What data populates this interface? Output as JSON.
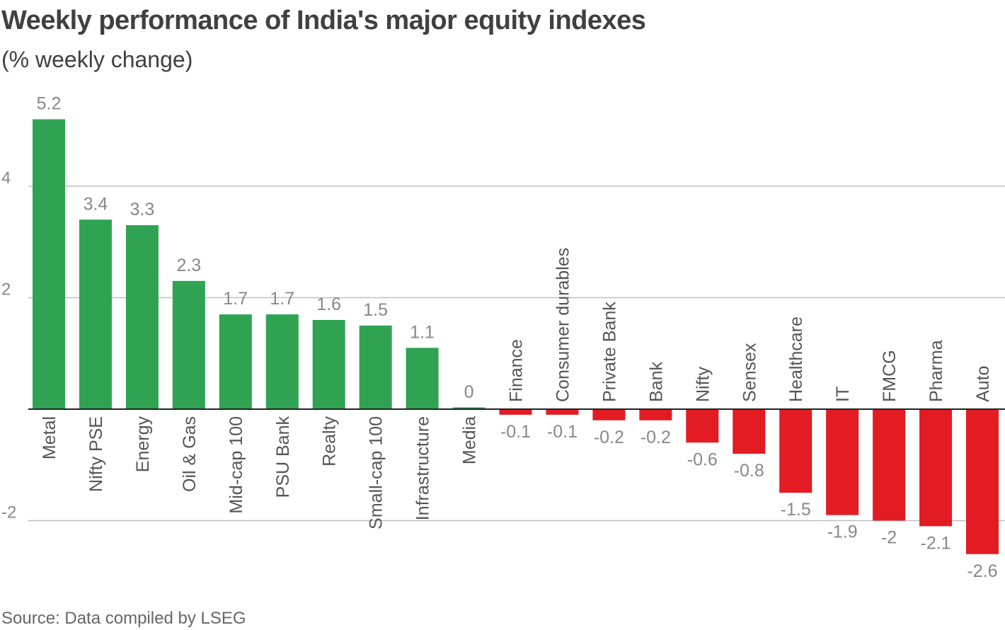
{
  "title": "Weekly performance of India's major equity indexes",
  "subtitle": "(% weekly change)",
  "source": "Source: Data compiled by LSEG",
  "colors": {
    "positive": "#2fa352",
    "negative": "#e31b23",
    "grid": "#bfbfbf",
    "axis": "#222222",
    "text": "#555555",
    "value_label": "#888888"
  },
  "chart_data": {
    "type": "bar",
    "title": "Weekly performance of India's major equity indexes",
    "subtitle": "(% weekly change)",
    "xlabel": "",
    "ylabel": "",
    "ylim": [
      -2.6,
      5.2
    ],
    "yticks": [
      4,
      2,
      -2
    ],
    "ytick_labels": [
      "4",
      "2",
      "-2"
    ],
    "grid": true,
    "categories": [
      "Metal",
      "Nifty PSE",
      "Energy",
      "Oil & Gas",
      "Mid-cap 100",
      "PSU Bank",
      "Realty",
      "Small-cap 100",
      "Infrastructure",
      "Media",
      "Finance",
      "Consumer durables",
      "Private Bank",
      "Bank",
      "Nifty",
      "Sensex",
      "Healthcare",
      "IT",
      "FMCG",
      "Pharma",
      "Auto"
    ],
    "values": [
      5.2,
      3.4,
      3.3,
      2.3,
      1.7,
      1.7,
      1.6,
      1.5,
      1.1,
      0,
      -0.1,
      -0.1,
      -0.2,
      -0.2,
      -0.6,
      -0.8,
      -1.5,
      -1.9,
      -2,
      -2.1,
      -2.6
    ],
    "value_labels": [
      "5.2",
      "3.4",
      "3.3",
      "2.3",
      "1.7",
      "1.7",
      "1.6",
      "1.5",
      "1.1",
      "0",
      "-0.1",
      "-0.1",
      "-0.2",
      "-0.2",
      "-0.6",
      "-0.8",
      "-1.5",
      "-1.9",
      "-2",
      "-2.1",
      "-2.6"
    ]
  }
}
